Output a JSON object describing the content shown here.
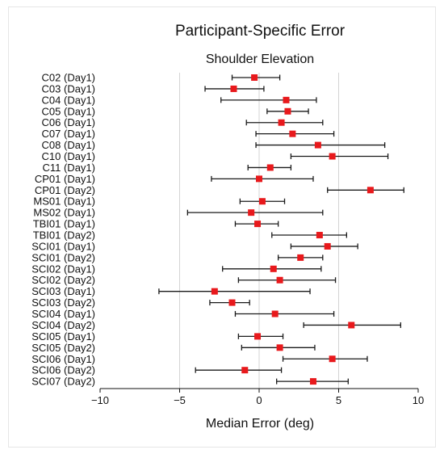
{
  "chart_data": {
    "type": "scatter",
    "title": "Participant-Specific Error",
    "subtitle": "Shoulder Elevation",
    "xlabel": "Median Error (deg)",
    "xlim": [
      -10,
      10
    ],
    "xticks": [
      -10,
      -5,
      0,
      5,
      10
    ],
    "grid": "vertical at -5, 0, 5",
    "marker_color": "#e8191c",
    "errorbar_color": "#1a1a1a",
    "grid_color": "#d4d4d4",
    "categories": [
      "C02 (Day1)",
      "C03 (Day1)",
      "C04 (Day1)",
      "C05 (Day1)",
      "C06 (Day1)",
      "C07 (Day1)",
      "C08 (Day1)",
      "C10 (Day1)",
      "C11 (Day1)",
      "CP01 (Day1)",
      "CP01 (Day2)",
      "MS01 (Day1)",
      "MS02 (Day1)",
      "TBI01 (Day1)",
      "TBI01 (Day2)",
      "SCI01 (Day1)",
      "SCI01 (Day2)",
      "SCI02 (Day1)",
      "SCI02 (Day2)",
      "SCI03 (Day1)",
      "SCI03 (Day2)",
      "SCI04 (Day1)",
      "SCI04 (Day2)",
      "SCI05 (Day1)",
      "SCI05 (Day2)",
      "SCI06 (Day1)",
      "SCI06 (Day2)",
      "SCI07 (Day2)"
    ],
    "median": [
      -0.3,
      -1.6,
      1.7,
      1.8,
      1.4,
      2.1,
      3.7,
      4.6,
      0.7,
      0.0,
      7.0,
      0.2,
      -0.5,
      -0.1,
      3.8,
      4.3,
      2.6,
      0.9,
      1.3,
      -2.8,
      -1.7,
      1.0,
      5.8,
      -0.1,
      1.3,
      4.6,
      -0.9,
      3.4
    ],
    "lower": [
      -1.7,
      -3.4,
      -2.4,
      0.5,
      -0.8,
      -0.2,
      -0.2,
      2.0,
      -0.7,
      -3.0,
      4.3,
      -1.2,
      -4.5,
      -1.5,
      0.8,
      2.0,
      1.2,
      -2.3,
      -1.3,
      -6.3,
      -3.1,
      -1.5,
      2.8,
      -1.3,
      -1.1,
      1.5,
      -4.0,
      1.1
    ],
    "upper": [
      1.3,
      0.3,
      3.6,
      3.1,
      4.0,
      4.7,
      7.9,
      8.1,
      2.0,
      3.4,
      9.1,
      1.6,
      4.0,
      1.2,
      5.5,
      6.2,
      4.0,
      3.9,
      4.8,
      3.2,
      -0.6,
      4.7,
      8.9,
      1.5,
      3.5,
      6.8,
      1.4,
      5.6
    ]
  }
}
